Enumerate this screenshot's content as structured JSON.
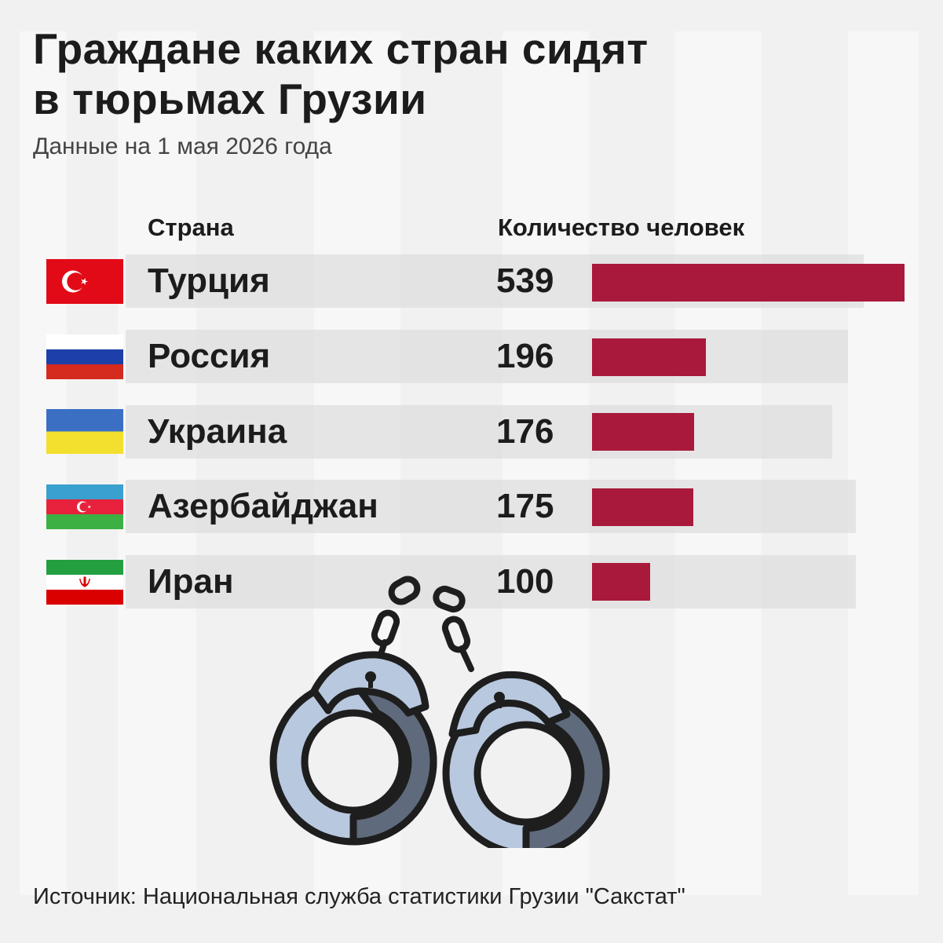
{
  "title_line1": "Граждане каких стран сидят",
  "title_line2": "в тюрьмах Грузии",
  "subtitle": "Данные на 1 мая 2026 года",
  "col_country": "Страна",
  "col_count": "Количество человек",
  "source": "Источник: Национальная служба статистики Грузии \"Сакстат\"",
  "colors": {
    "bar": "#a8193b",
    "band": "#d7d7d7",
    "background": "#f1f1f1"
  },
  "chart_data": {
    "type": "bar",
    "orientation": "horizontal",
    "title": "Граждане каких стран сидят в тюрьмах Грузии",
    "subtitle": "Данные на 1 мая 2026 года",
    "categories": [
      "Турция",
      "Россия",
      "Украина",
      "Азербайджан",
      "Иран"
    ],
    "values": [
      539,
      196,
      176,
      175,
      100
    ],
    "flags": [
      "turkey-flag-icon",
      "russia-flag-icon",
      "ukraine-flag-icon",
      "azerbaijan-flag-icon",
      "iran-flag-icon"
    ],
    "xlim": [
      0,
      539
    ],
    "grid": false,
    "legend": "none"
  },
  "illustration": "handcuffs-icon"
}
